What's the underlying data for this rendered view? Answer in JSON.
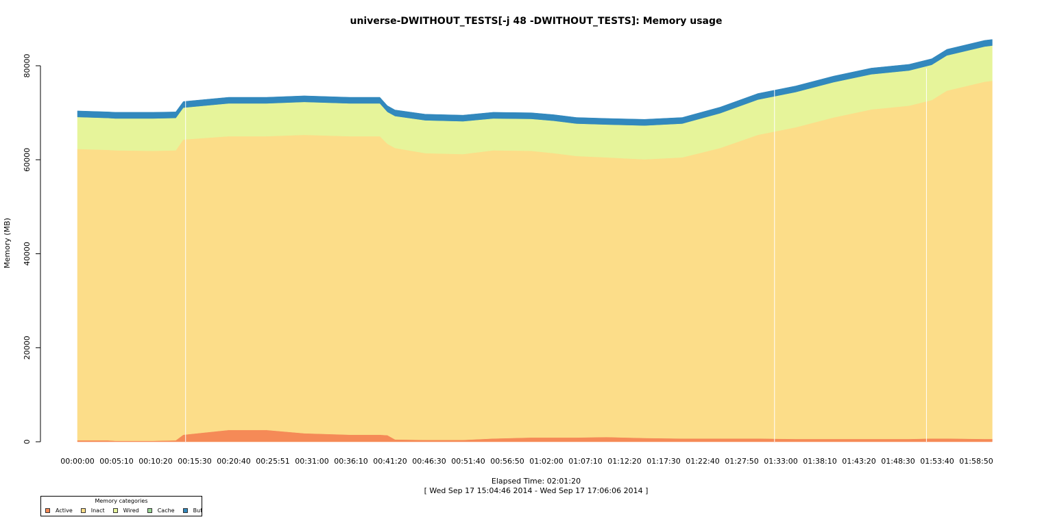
{
  "chart_data": {
    "type": "area",
    "title": "universe-DWITHOUT_TESTS[-j 48  -DWITHOUT_TESTS]: Memory usage",
    "xlabel": "Elapsed Time: 02:01:20",
    "xlabel_range": "[ Wed Sep 17 15:04:46 2014 - Wed Sep 17 17:06:06 2014 ]",
    "ylabel": "Memory (MB)",
    "ylim": [
      0,
      85000
    ],
    "yticks": [
      0,
      20000,
      40000,
      60000,
      80000
    ],
    "xticks": [
      "00:00:00",
      "00:05:10",
      "00:10:20",
      "00:15:30",
      "00:20:40",
      "00:25:51",
      "00:31:00",
      "00:36:10",
      "00:41:20",
      "00:46:30",
      "00:51:40",
      "00:56:50",
      "01:02:00",
      "01:07:10",
      "01:12:20",
      "01:17:30",
      "01:22:40",
      "01:27:50",
      "01:33:00",
      "01:38:10",
      "01:43:20",
      "01:48:30",
      "01:53:40",
      "01:58:50"
    ],
    "x_minutes": [
      0,
      4,
      5,
      10,
      13,
      14,
      20,
      25,
      30,
      36,
      40,
      41,
      42,
      46,
      51,
      55,
      60,
      63,
      66,
      70,
      75,
      80,
      85,
      90,
      95,
      100,
      105,
      110,
      113,
      115,
      120,
      121
    ],
    "series": [
      {
        "name": "Active",
        "color": "#f58a57",
        "values": [
          300,
          300,
          200,
          200,
          300,
          1500,
          2500,
          2500,
          1800,
          1500,
          1500,
          1400,
          500,
          400,
          400,
          700,
          900,
          900,
          900,
          1000,
          800,
          700,
          700,
          700,
          600,
          600,
          600,
          600,
          700,
          700,
          600,
          600
        ]
      },
      {
        "name": "Inact",
        "color": "#fcdd89",
        "values": [
          62000,
          61800,
          61800,
          61700,
          61700,
          62800,
          62500,
          62500,
          63500,
          63500,
          63500,
          62000,
          62000,
          61000,
          60800,
          61300,
          61000,
          60500,
          59900,
          59500,
          59300,
          59800,
          61800,
          64600,
          66300,
          68400,
          70100,
          70900,
          72000,
          74000,
          76000,
          76200
        ]
      },
      {
        "name": "Wired",
        "color": "#e6f49a",
        "values": [
          6800,
          6800,
          6800,
          6900,
          6900,
          6800,
          7000,
          7000,
          7000,
          7000,
          7000,
          6800,
          6800,
          7000,
          7000,
          6800,
          6800,
          6900,
          6900,
          7000,
          7200,
          7200,
          7400,
          7500,
          7500,
          7500,
          7500,
          7500,
          7500,
          7500,
          7500,
          7500
        ]
      },
      {
        "name": "Cache",
        "color": "#99d595",
        "values": [
          0,
          0,
          0,
          0,
          0,
          0,
          0,
          0,
          0,
          0,
          0,
          0,
          0,
          0,
          0,
          0,
          0,
          0,
          0,
          0,
          0,
          0,
          0,
          0,
          0,
          0,
          0,
          0,
          0,
          0,
          0,
          0
        ]
      },
      {
        "name": "Buf",
        "color": "#3288bd",
        "values": [
          1300,
          1300,
          1300,
          1300,
          1300,
          1300,
          1300,
          1300,
          1300,
          1300,
          1300,
          1300,
          1300,
          1300,
          1300,
          1300,
          1300,
          1300,
          1300,
          1300,
          1300,
          1300,
          1300,
          1300,
          1300,
          1300,
          1300,
          1300,
          1300,
          1300,
          1300,
          1300
        ]
      }
    ],
    "vlines_minutes": [
      14.3,
      92.2,
      112.3
    ],
    "legend": {
      "title": "Memory categories",
      "position": "bottom-left"
    },
    "grid": false
  }
}
